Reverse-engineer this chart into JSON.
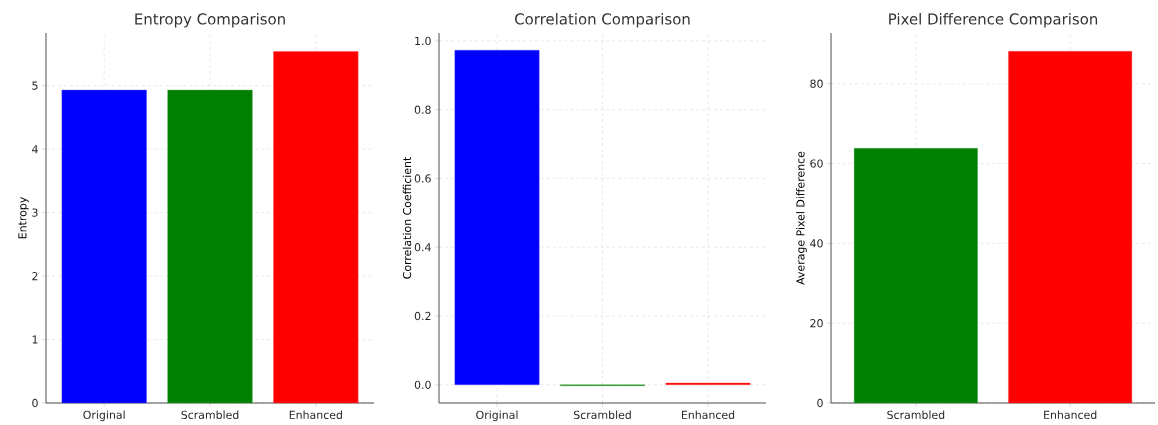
{
  "chart_data": [
    {
      "type": "bar",
      "title": "Entropy Comparison",
      "ylabel": "Entropy",
      "categories": [
        "Original",
        "Scrambled",
        "Enhanced"
      ],
      "values": [
        4.93,
        4.93,
        5.54
      ],
      "colors": [
        "#0000ff",
        "#008000",
        "#ff0000"
      ],
      "ylim": [
        0,
        5.83
      ],
      "yticks": [
        0,
        1,
        2,
        3,
        4,
        5
      ],
      "grid": true
    },
    {
      "type": "bar",
      "title": "Correlation Comparison",
      "ylabel": "Correlation Coefficient",
      "categories": [
        "Original",
        "Scrambled",
        "Enhanced"
      ],
      "values": [
        0.973,
        -0.003,
        0.005
      ],
      "colors": [
        "#0000ff",
        "#008000",
        "#ff0000"
      ],
      "ylim": [
        -0.053,
        1.023
      ],
      "yticks": [
        {
          "value": 0,
          "label": "0.0"
        },
        0.2,
        0.4,
        0.6,
        0.8,
        {
          "value": 1,
          "label": "1.0"
        }
      ],
      "grid": true
    },
    {
      "type": "bar",
      "title": "Pixel Difference Comparison",
      "ylabel": "Average Pixel Difference",
      "categories": [
        "Scrambled",
        "Enhanced"
      ],
      "values": [
        63.8,
        88.1
      ],
      "colors": [
        "#008000",
        "#ff0000"
      ],
      "ylim": [
        0,
        92.7
      ],
      "yticks": [
        0,
        20,
        40,
        60,
        80
      ],
      "grid": true
    }
  ]
}
